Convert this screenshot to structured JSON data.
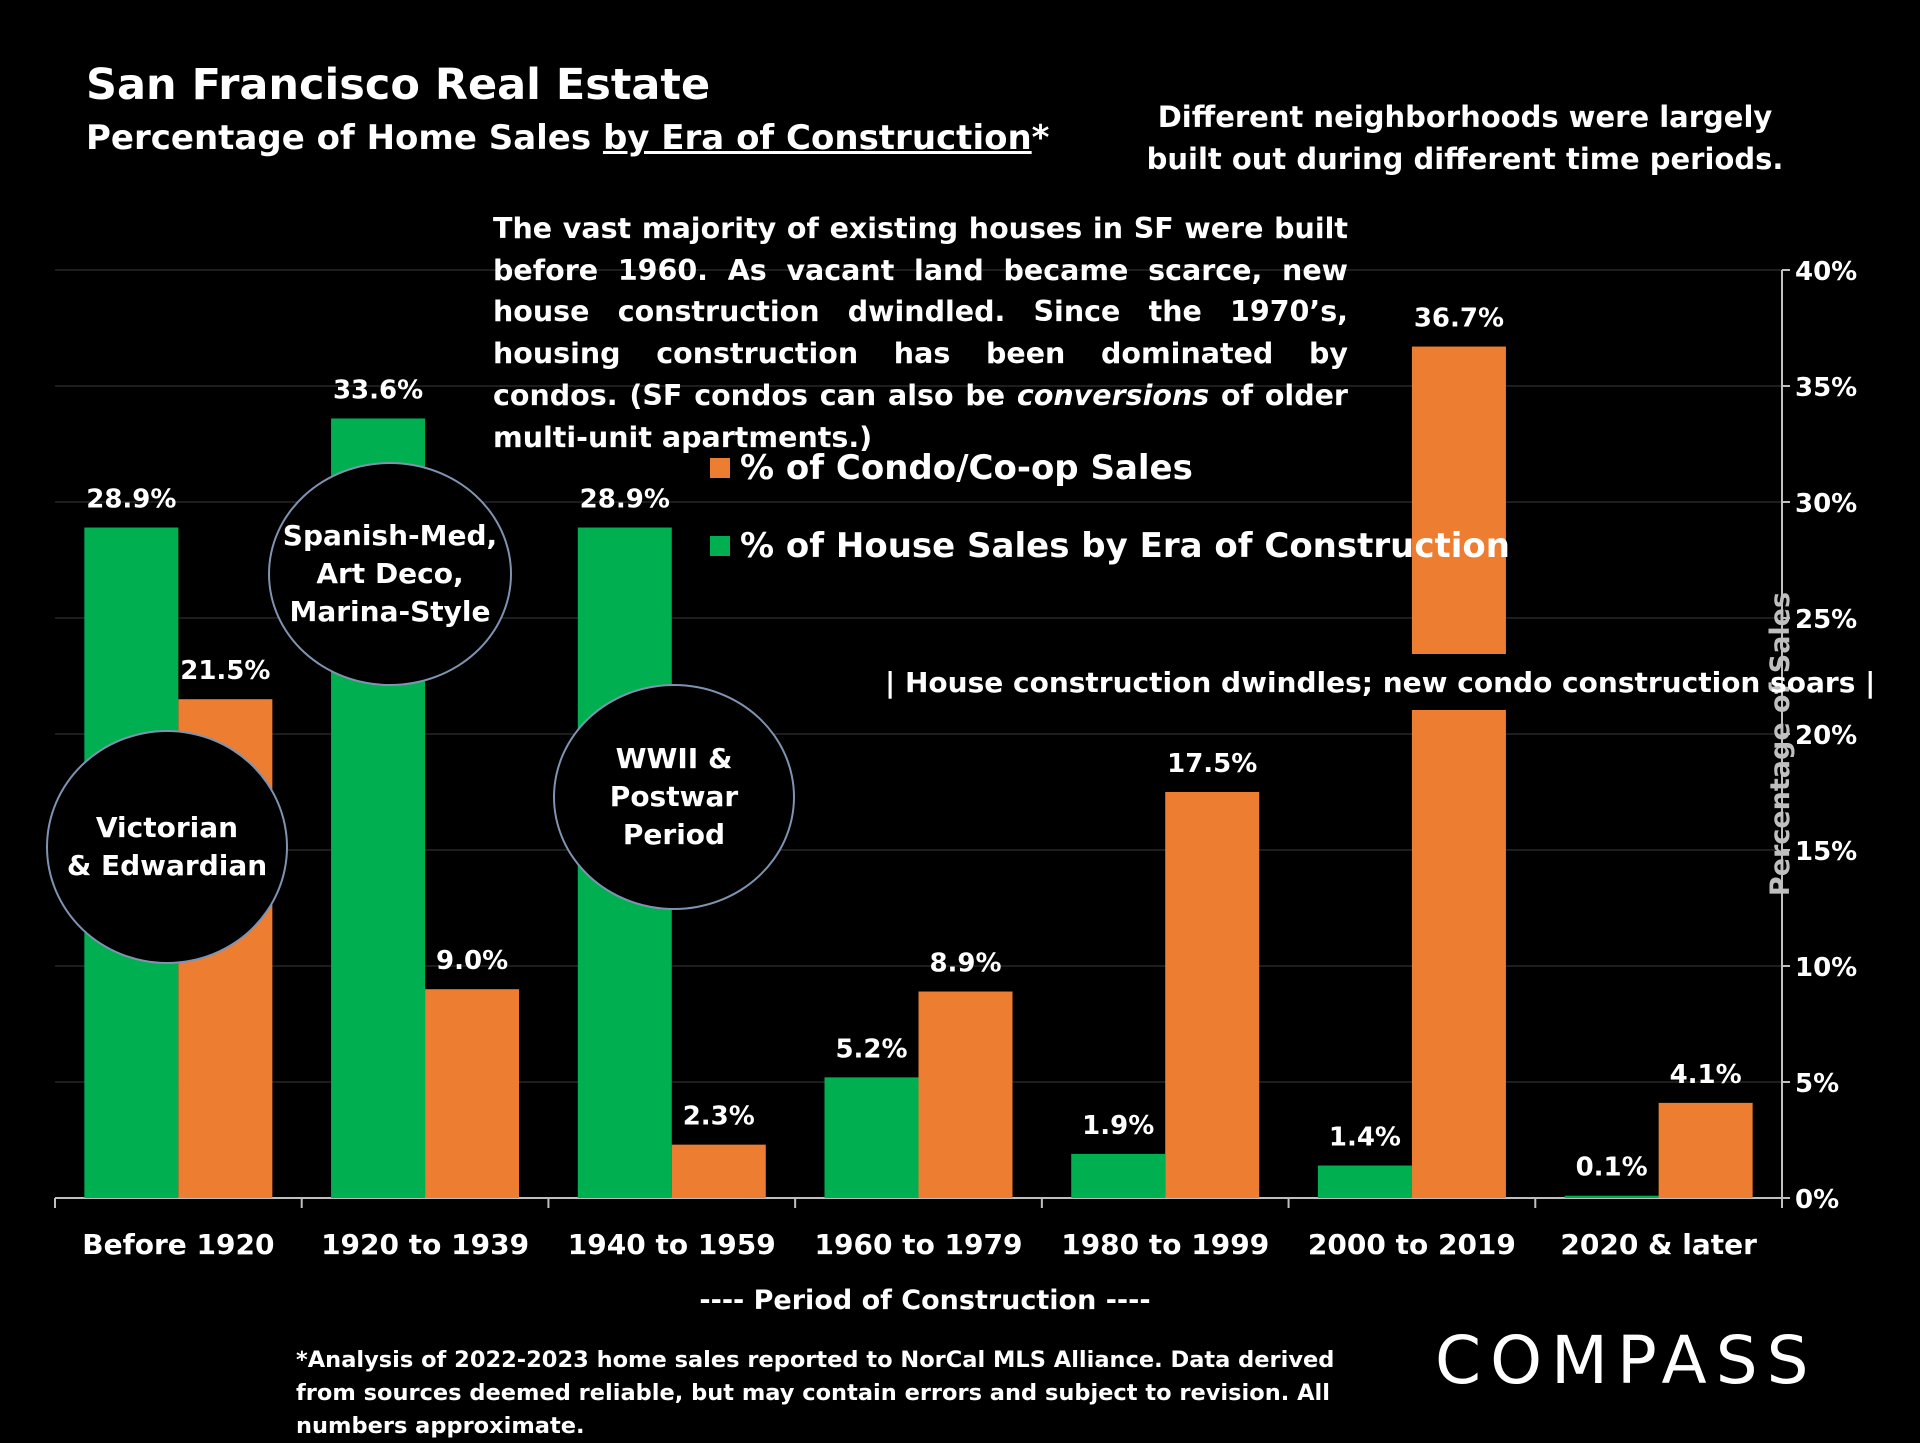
{
  "title": "San Francisco Real Estate",
  "subtitle": {
    "prefix": "Percentage of Home Sales ",
    "underlined": "by Era of Construction",
    "suffix": "*"
  },
  "side_note": "Different neighborhoods were largely built out during different time periods.",
  "description": {
    "part1": "The vast majority of existing houses in SF were built before 1960. As vacant land became scarce, new house construction dwindled. Since the 1970’s, housing construction has been dominated by condos. (SF condos can also be ",
    "italic": "conversions",
    "part2": " of older multi-unit apartments.)"
  },
  "annotation": "| House construction dwindles;  new condo construction soars |",
  "bubbles": {
    "victorian": [
      "Victorian",
      "& Edwardian"
    ],
    "spanish": [
      "Spanish-Med,",
      "Art Deco,",
      "Marina-Style"
    ],
    "wwii": [
      "WWII &",
      "Postwar Period"
    ]
  },
  "footnote": "*Analysis of 2022-2023 home sales reported to NorCal MLS Alliance.  Data derived from sources deemed reliable, but may contain errors and subject to revision. All numbers approximate.",
  "logo": "COMPASS",
  "colors": {
    "house": "#00b050",
    "condo": "#ed7d31",
    "background": "#000000",
    "gridline": "#3a3a3a"
  },
  "chart_data": {
    "type": "bar",
    "categories": [
      "Before 1920",
      "1920 to 1939",
      "1940 to 1959",
      "1960 to 1979",
      "1980 to 1999",
      "2000 to 2019",
      "2020 & later"
    ],
    "series": [
      {
        "name": "% of House Sales by Era of Construction",
        "values": [
          28.9,
          33.6,
          28.9,
          5.2,
          1.9,
          1.4,
          0.1
        ],
        "labels": [
          "28.9%",
          "33.6%",
          "28.9%",
          "5.2%",
          "1.9%",
          "1.4%",
          "0.1%"
        ]
      },
      {
        "name": "% of Condo/Co-op Sales",
        "values": [
          21.5,
          9.0,
          2.3,
          8.9,
          17.5,
          36.7,
          4.1
        ],
        "labels": [
          "21.5%",
          "9.0%",
          "2.3%",
          "8.9%",
          "17.5%",
          "36.7%",
          "4.1%"
        ]
      }
    ],
    "xlabel": "----   Period of Construction   ----",
    "ylabel": "Percentage of Sales",
    "ylim": [
      0,
      40
    ],
    "yticks": [
      0,
      5,
      10,
      15,
      20,
      25,
      30,
      35,
      40
    ],
    "ytick_labels": [
      "0%",
      "5%",
      "10%",
      "15%",
      "20%",
      "25%",
      "30%",
      "35%",
      "40%"
    ],
    "y_axis_side": "right",
    "grid": true,
    "legend_placement": "center"
  }
}
